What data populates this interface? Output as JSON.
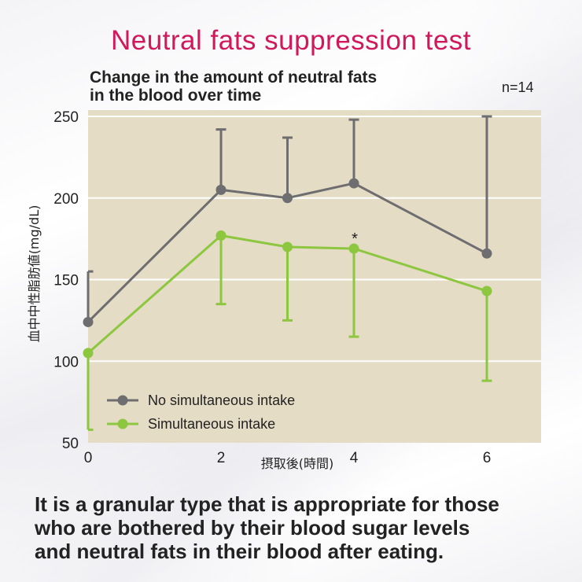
{
  "title": "Neutral fats suppression test",
  "subtitle_line1": "Change in the amount of neutral fats",
  "subtitle_line2": "in the blood over time",
  "n_label": "n=14",
  "bottom_line1": "It is a granular type that is appropriate for those",
  "bottom_line2": "who are bothered by their blood sugar levels",
  "bottom_line3": "and neutral fats in their blood after eating.",
  "colors": {
    "title": "#d0185a",
    "plot_bg": "#e4dcc5",
    "gray_series": "#6e6e70",
    "green_series": "#8dc63f"
  },
  "chart_data": {
    "type": "line",
    "xlabel": "摂取後(時間)",
    "ylabel": "血中中性脂肪値(mg/dL)",
    "xlim": [
      0,
      7
    ],
    "ylim": [
      50,
      250
    ],
    "x_ticks": [
      0,
      2,
      4,
      6
    ],
    "y_ticks": [
      50,
      100,
      150,
      200,
      250
    ],
    "grid": "horizontal",
    "legend_position": "bottom-left",
    "annotations": [
      {
        "text": "*",
        "x": 4
      }
    ],
    "series": [
      {
        "name": "No simultaneous intake",
        "color": "#6e6e70",
        "x": [
          0,
          2,
          3,
          4,
          6
        ],
        "y": [
          124,
          205,
          200,
          209,
          166
        ],
        "error_upper": [
          155,
          242,
          237,
          248,
          250
        ],
        "error_direction": "up"
      },
      {
        "name": "Simultaneous intake",
        "color": "#8dc63f",
        "x": [
          0,
          2,
          3,
          4,
          6
        ],
        "y": [
          105,
          177,
          170,
          169,
          143
        ],
        "error_lower": [
          58,
          135,
          125,
          115,
          88
        ],
        "error_direction": "down"
      }
    ]
  }
}
